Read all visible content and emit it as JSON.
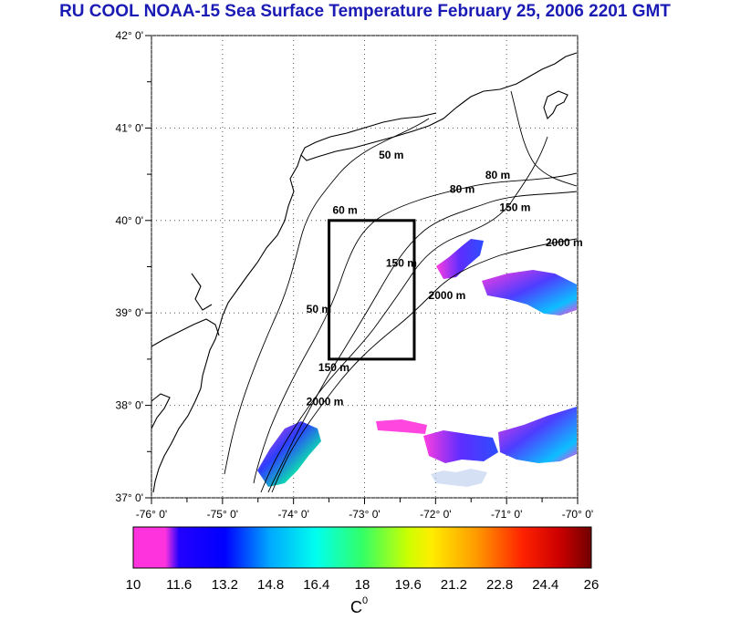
{
  "title": "RU COOL  NOAA-15 Sea Surface Temperature February 25, 2006 2201 GMT",
  "map": {
    "lon_range": [
      -76,
      -70
    ],
    "lat_range": [
      37,
      42
    ],
    "x_ticks": [
      {
        "value": -76,
        "label": "-76° 0'"
      },
      {
        "value": -75,
        "label": "-75° 0'"
      },
      {
        "value": -74,
        "label": "-74° 0'"
      },
      {
        "value": -73,
        "label": "-73° 0'"
      },
      {
        "value": -72,
        "label": "-72° 0'"
      },
      {
        "value": -71,
        "label": "-71° 0'"
      },
      {
        "value": -70,
        "label": "-70° 0'"
      }
    ],
    "y_ticks": [
      {
        "value": 42,
        "label": "42° 0'"
      },
      {
        "value": 41,
        "label": "41° 0'"
      },
      {
        "value": 40,
        "label": "40° 0'"
      },
      {
        "value": 39,
        "label": "39° 0'"
      },
      {
        "value": 38,
        "label": "38° 0'"
      },
      {
        "value": 37,
        "label": "37° 0'"
      }
    ],
    "grid": "dotted",
    "study_box": {
      "lon_min": -73.5,
      "lon_max": -72.3,
      "lat_min": 38.5,
      "lat_max": 40.0
    },
    "contour_labels": [
      {
        "text": "50 m",
        "lon": -72.8,
        "lat": 40.67
      },
      {
        "text": "80 m",
        "lon": -71.3,
        "lat": 40.45
      },
      {
        "text": "80 m",
        "lon": -71.8,
        "lat": 40.3
      },
      {
        "text": "60 m",
        "lon": -73.45,
        "lat": 40.07
      },
      {
        "text": "150 m",
        "lon": -71.1,
        "lat": 40.1
      },
      {
        "text": "2000 m",
        "lon": -70.45,
        "lat": 39.72
      },
      {
        "text": "150 m",
        "lon": -72.7,
        "lat": 39.5
      },
      {
        "text": "2000 m",
        "lon": -72.1,
        "lat": 39.15
      },
      {
        "text": "50 m",
        "lon": -73.82,
        "lat": 39.0
      },
      {
        "text": "150 m",
        "lon": -73.65,
        "lat": 38.37
      },
      {
        "text": "2000 m",
        "lon": -73.82,
        "lat": 38.0
      }
    ]
  },
  "colorbar": {
    "min": 10,
    "max": 26,
    "tick_labels": [
      "10",
      "11.6",
      "13.2",
      "14.8",
      "16.4",
      "18",
      "19.6",
      "21.2",
      "22.8",
      "24.4",
      "26"
    ],
    "unit_label": "C",
    "unit_superscript": "0",
    "colors": [
      "#ff33dd",
      "#0000ff",
      "#00bbff",
      "#00ffcc",
      "#66ff33",
      "#ffff00",
      "#ff9900",
      "#ff2200",
      "#cc0000",
      "#800000"
    ]
  }
}
